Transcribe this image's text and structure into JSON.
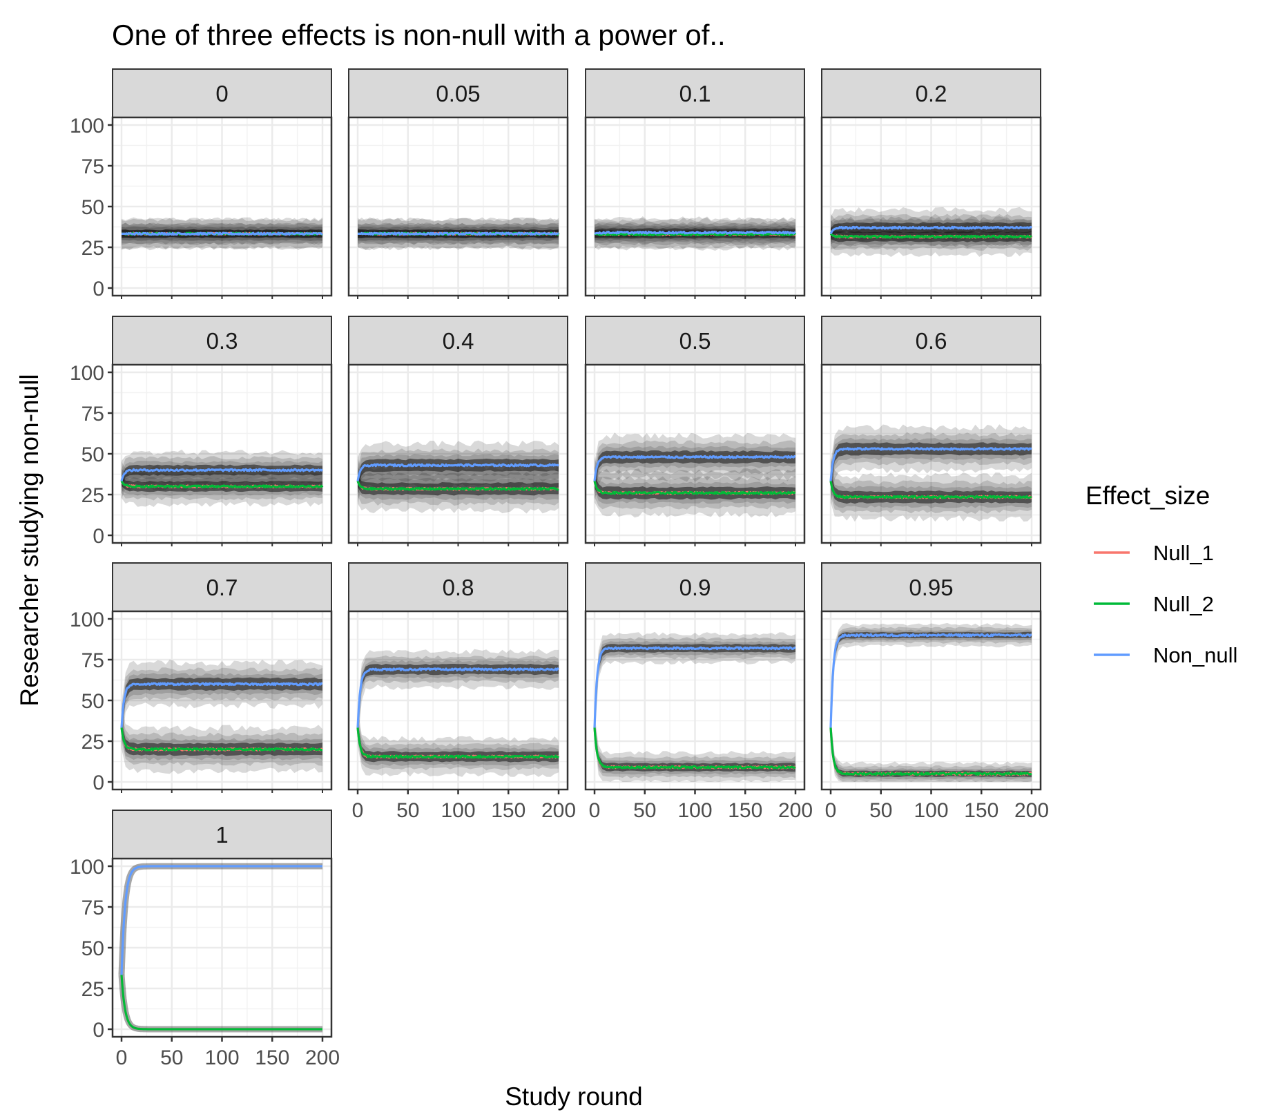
{
  "chart_data": {
    "type": "line",
    "title": "One of three effects is non-null with a power of..",
    "xlabel": "Study round",
    "ylabel": "Researcher studying non-null",
    "xlim": [
      0,
      200
    ],
    "ylim": [
      0,
      100
    ],
    "x_ticks": [
      0,
      50,
      100,
      150,
      200
    ],
    "y_ticks": [
      0,
      25,
      50,
      75,
      100
    ],
    "grid": true,
    "legend": {
      "title": "Effect_size",
      "placement": "right",
      "entries": [
        {
          "name": "Null_1",
          "color": "#F8766D"
        },
        {
          "name": "Null_2",
          "color": "#00BA38"
        },
        {
          "name": "Non_null",
          "color": "#619CFF"
        }
      ]
    },
    "panels": [
      {
        "label": "0",
        "non_null": 33.3,
        "null_1": 33.3,
        "null_2": 33.3,
        "band": 4
      },
      {
        "label": "0.05",
        "non_null": 33.3,
        "null_1": 33.3,
        "null_2": 33.3,
        "band": 4
      },
      {
        "label": "0.1",
        "non_null": 34,
        "null_1": 33,
        "null_2": 33,
        "band": 4
      },
      {
        "label": "0.2",
        "non_null": 37,
        "null_1": 31.5,
        "null_2": 31.5,
        "band": 5
      },
      {
        "label": "0.3",
        "non_null": 40,
        "null_1": 30,
        "null_2": 30,
        "band": 5
      },
      {
        "label": "0.4",
        "non_null": 43,
        "null_1": 28.5,
        "null_2": 28.5,
        "band": 6
      },
      {
        "label": "0.5",
        "non_null": 48,
        "null_1": 26,
        "null_2": 26,
        "band": 6
      },
      {
        "label": "0.6",
        "non_null": 53,
        "null_1": 23.5,
        "null_2": 23.5,
        "band": 6
      },
      {
        "label": "0.7",
        "non_null": 60,
        "null_1": 20,
        "null_2": 20,
        "band": 6
      },
      {
        "label": "0.8",
        "non_null": 69,
        "null_1": 15.5,
        "null_2": 15.5,
        "band": 5
      },
      {
        "label": "0.9",
        "non_null": 82,
        "null_1": 9,
        "null_2": 9,
        "band": 4
      },
      {
        "label": "0.95",
        "non_null": 90,
        "null_1": 5,
        "null_2": 5,
        "band": 3
      },
      {
        "label": "1",
        "non_null": 100,
        "null_1": 0,
        "null_2": 0,
        "band": 0
      }
    ]
  }
}
